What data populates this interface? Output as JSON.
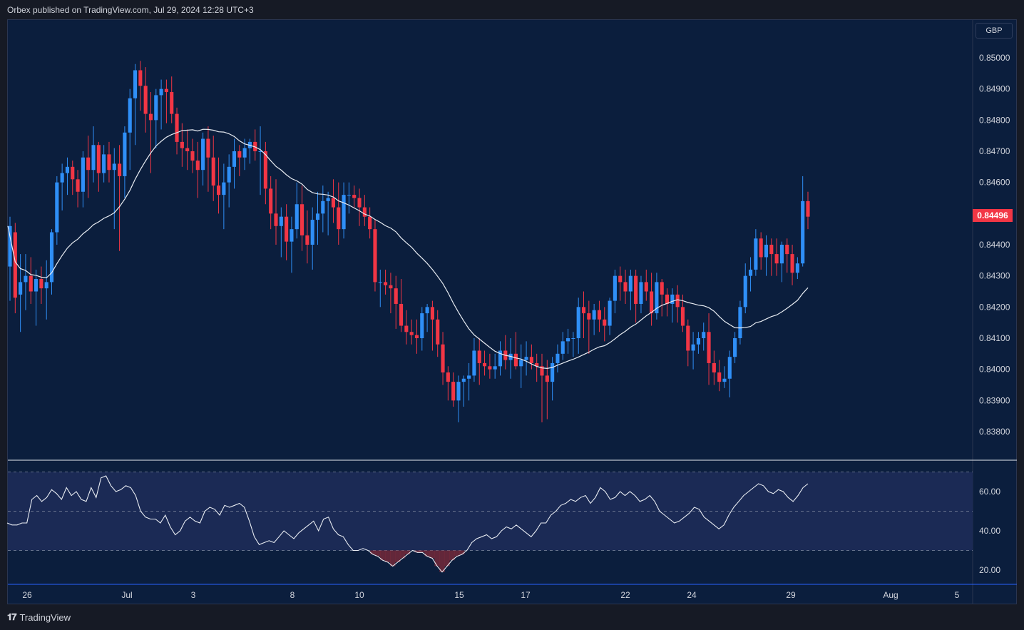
{
  "header": {
    "attribution": "Orbex published on TradingView.com, Jul 29, 2024 12:28 UTC+3"
  },
  "footer": {
    "brand": "TradingView"
  },
  "price_axis": {
    "currency": "GBP",
    "last_price": "0.84496",
    "ticks": [
      "0.85000",
      "0.84900",
      "0.84800",
      "0.84700",
      "0.84600",
      "0.84400",
      "0.84300",
      "0.84200",
      "0.84100",
      "0.84000",
      "0.83900",
      "0.83800"
    ]
  },
  "rsi_axis": {
    "ticks": [
      "60.00",
      "40.00",
      "20.00"
    ]
  },
  "time_axis": {
    "labels": [
      "26",
      "Jul",
      "3",
      "8",
      "10",
      "15",
      "17",
      "22",
      "24",
      "29",
      "Aug",
      "5"
    ]
  },
  "colors": {
    "background": "#0b1e3d",
    "up_candle": "#2f8ff7",
    "down_candle": "#f23645",
    "moving_average": "#e8ecf2",
    "rsi_line": "#e8ecf2",
    "rsi_band": "#1b2a55"
  },
  "chart_data": [
    {
      "type": "candlestick",
      "symbol_currency": "GBP",
      "ylim": [
        0.8375,
        0.851
      ],
      "x_start": "Jun 25",
      "x_end": "Aug 5",
      "candles_ohlc": [
        [
          0.8433,
          0.8449,
          0.8422,
          0.8446
        ],
        [
          0.8444,
          0.8447,
          0.8418,
          0.8423
        ],
        [
          0.8424,
          0.8437,
          0.8412,
          0.8428
        ],
        [
          0.8428,
          0.8437,
          0.8419,
          0.843
        ],
        [
          0.843,
          0.8436,
          0.8421,
          0.8425
        ],
        [
          0.8425,
          0.8432,
          0.8414,
          0.8429
        ],
        [
          0.8429,
          0.8433,
          0.8421,
          0.8426
        ],
        [
          0.8426,
          0.8435,
          0.8416,
          0.8428
        ],
        [
          0.8428,
          0.8445,
          0.8424,
          0.8444
        ],
        [
          0.8444,
          0.8462,
          0.844,
          0.846
        ],
        [
          0.846,
          0.8466,
          0.8451,
          0.8463
        ],
        [
          0.8463,
          0.8468,
          0.8456,
          0.8465
        ],
        [
          0.8465,
          0.8467,
          0.8456,
          0.8461
        ],
        [
          0.8461,
          0.8464,
          0.8452,
          0.8457
        ],
        [
          0.8457,
          0.847,
          0.8452,
          0.8468
        ],
        [
          0.8468,
          0.8475,
          0.8455,
          0.8464
        ],
        [
          0.8464,
          0.8478,
          0.846,
          0.8472
        ],
        [
          0.8472,
          0.8473,
          0.8457,
          0.8463
        ],
        [
          0.8463,
          0.8472,
          0.846,
          0.8469
        ],
        [
          0.8469,
          0.8473,
          0.846,
          0.8464
        ],
        [
          0.8464,
          0.8471,
          0.8445,
          0.8466
        ],
        [
          0.8466,
          0.8472,
          0.8438,
          0.8462
        ],
        [
          0.8462,
          0.8478,
          0.8455,
          0.8476
        ],
        [
          0.8476,
          0.849,
          0.8464,
          0.8487
        ],
        [
          0.8487,
          0.8498,
          0.8472,
          0.8496
        ],
        [
          0.8496,
          0.8499,
          0.8483,
          0.8491
        ],
        [
          0.8491,
          0.8497,
          0.8476,
          0.8482
        ],
        [
          0.8482,
          0.8489,
          0.8463,
          0.848
        ],
        [
          0.848,
          0.849,
          0.8471,
          0.8488
        ],
        [
          0.8488,
          0.8493,
          0.8477,
          0.849
        ],
        [
          0.849,
          0.8493,
          0.8479,
          0.8489
        ],
        [
          0.8489,
          0.8494,
          0.8479,
          0.8482
        ],
        [
          0.8482,
          0.8484,
          0.8469,
          0.8473
        ],
        [
          0.8473,
          0.8479,
          0.8465,
          0.8471
        ],
        [
          0.8471,
          0.8477,
          0.8464,
          0.847
        ],
        [
          0.847,
          0.8474,
          0.8463,
          0.8467
        ],
        [
          0.8467,
          0.8473,
          0.8455,
          0.8464
        ],
        [
          0.8464,
          0.8476,
          0.8459,
          0.8474
        ],
        [
          0.8474,
          0.8478,
          0.8457,
          0.8468
        ],
        [
          0.8468,
          0.8475,
          0.8454,
          0.8459
        ],
        [
          0.8459,
          0.8468,
          0.845,
          0.8456
        ],
        [
          0.8456,
          0.8466,
          0.8445,
          0.846
        ],
        [
          0.846,
          0.8469,
          0.8452,
          0.8465
        ],
        [
          0.8465,
          0.8474,
          0.8458,
          0.847
        ],
        [
          0.847,
          0.8472,
          0.8462,
          0.8468
        ],
        [
          0.8468,
          0.8474,
          0.8464,
          0.8471
        ],
        [
          0.8471,
          0.8474,
          0.8466,
          0.8473
        ],
        [
          0.8473,
          0.8477,
          0.8467,
          0.847
        ],
        [
          0.847,
          0.8478,
          0.8456,
          0.847
        ],
        [
          0.847,
          0.8473,
          0.8453,
          0.8458
        ],
        [
          0.8458,
          0.8462,
          0.8445,
          0.845
        ],
        [
          0.845,
          0.8461,
          0.844,
          0.8446
        ],
        [
          0.8446,
          0.8452,
          0.8436,
          0.8449
        ],
        [
          0.8449,
          0.8453,
          0.8435,
          0.8441
        ],
        [
          0.8441,
          0.8449,
          0.8431,
          0.8445
        ],
        [
          0.8445,
          0.846,
          0.8442,
          0.8453
        ],
        [
          0.8453,
          0.8459,
          0.8438,
          0.8443
        ],
        [
          0.8443,
          0.8451,
          0.8434,
          0.844
        ],
        [
          0.844,
          0.8452,
          0.8432,
          0.8448
        ],
        [
          0.8448,
          0.8457,
          0.844,
          0.845
        ],
        [
          0.845,
          0.8459,
          0.8444,
          0.8454
        ],
        [
          0.8454,
          0.8457,
          0.8443,
          0.8455
        ],
        [
          0.8455,
          0.8461,
          0.8447,
          0.8452
        ],
        [
          0.8452,
          0.846,
          0.844,
          0.8445
        ],
        [
          0.8445,
          0.846,
          0.8442,
          0.8456
        ],
        [
          0.8456,
          0.846,
          0.845,
          0.8456
        ],
        [
          0.8456,
          0.8459,
          0.8452,
          0.8455
        ],
        [
          0.8455,
          0.8458,
          0.8446,
          0.8452
        ],
        [
          0.8452,
          0.8456,
          0.8446,
          0.8449
        ],
        [
          0.8449,
          0.8452,
          0.8442,
          0.8445
        ],
        [
          0.8445,
          0.8448,
          0.8425,
          0.8428
        ],
        [
          0.8428,
          0.8432,
          0.842,
          0.8428
        ],
        [
          0.8428,
          0.8432,
          0.8424,
          0.8427
        ],
        [
          0.8427,
          0.8431,
          0.8418,
          0.8426
        ],
        [
          0.8426,
          0.843,
          0.8413,
          0.8421
        ],
        [
          0.8421,
          0.8429,
          0.8412,
          0.8414
        ],
        [
          0.8414,
          0.8419,
          0.8408,
          0.8412
        ],
        [
          0.8412,
          0.8416,
          0.8408,
          0.8411
        ],
        [
          0.8411,
          0.8416,
          0.8405,
          0.841
        ],
        [
          0.841,
          0.842,
          0.8406,
          0.8418
        ],
        [
          0.8418,
          0.8421,
          0.8412,
          0.842
        ],
        [
          0.842,
          0.8422,
          0.8406,
          0.8416
        ],
        [
          0.8416,
          0.8419,
          0.8404,
          0.8408
        ],
        [
          0.8408,
          0.8412,
          0.8395,
          0.8399
        ],
        [
          0.8399,
          0.8401,
          0.839,
          0.8396
        ],
        [
          0.8396,
          0.8399,
          0.8388,
          0.839
        ],
        [
          0.839,
          0.8398,
          0.8383,
          0.8396
        ],
        [
          0.8396,
          0.8398,
          0.8388,
          0.8397
        ],
        [
          0.8397,
          0.8402,
          0.839,
          0.8398
        ],
        [
          0.8398,
          0.841,
          0.8396,
          0.8406
        ],
        [
          0.8406,
          0.841,
          0.8395,
          0.8402
        ],
        [
          0.8402,
          0.8406,
          0.8398,
          0.8401
        ],
        [
          0.8401,
          0.8405,
          0.8397,
          0.84
        ],
        [
          0.84,
          0.8405,
          0.8397,
          0.8401
        ],
        [
          0.8401,
          0.8409,
          0.8398,
          0.8406
        ],
        [
          0.8406,
          0.8411,
          0.84,
          0.8403
        ],
        [
          0.8403,
          0.841,
          0.8397,
          0.8405
        ],
        [
          0.8405,
          0.8412,
          0.84,
          0.8401
        ],
        [
          0.8401,
          0.8408,
          0.8394,
          0.8403
        ],
        [
          0.8403,
          0.8409,
          0.8398,
          0.8404
        ],
        [
          0.8404,
          0.8408,
          0.84,
          0.8402
        ],
        [
          0.8402,
          0.8405,
          0.8396,
          0.8401
        ],
        [
          0.8401,
          0.8405,
          0.8383,
          0.8398
        ],
        [
          0.8398,
          0.8403,
          0.8384,
          0.8396
        ],
        [
          0.8396,
          0.8404,
          0.839,
          0.8402
        ],
        [
          0.8402,
          0.8408,
          0.8399,
          0.8405
        ],
        [
          0.8405,
          0.8412,
          0.8403,
          0.8409
        ],
        [
          0.8409,
          0.8413,
          0.8405,
          0.841
        ],
        [
          0.841,
          0.8412,
          0.8404,
          0.841
        ],
        [
          0.841,
          0.8423,
          0.8405,
          0.842
        ],
        [
          0.842,
          0.8425,
          0.841,
          0.8418
        ],
        [
          0.8418,
          0.8422,
          0.8405,
          0.8416
        ],
        [
          0.8416,
          0.8421,
          0.8411,
          0.8419
        ],
        [
          0.8419,
          0.8422,
          0.8412,
          0.8416
        ],
        [
          0.8416,
          0.842,
          0.8409,
          0.8414
        ],
        [
          0.8414,
          0.8423,
          0.8411,
          0.8422
        ],
        [
          0.8422,
          0.8432,
          0.8418,
          0.843
        ],
        [
          0.843,
          0.8433,
          0.8422,
          0.8428
        ],
        [
          0.8428,
          0.8432,
          0.8421,
          0.8425
        ],
        [
          0.8425,
          0.8432,
          0.8419,
          0.843
        ],
        [
          0.843,
          0.8432,
          0.8415,
          0.8421
        ],
        [
          0.8421,
          0.843,
          0.8418,
          0.8428
        ],
        [
          0.8428,
          0.8432,
          0.8422,
          0.8425
        ],
        [
          0.8425,
          0.8431,
          0.8414,
          0.8418
        ],
        [
          0.8418,
          0.8431,
          0.8416,
          0.8428
        ],
        [
          0.8428,
          0.8429,
          0.8417,
          0.8424
        ],
        [
          0.8424,
          0.8426,
          0.8417,
          0.8421
        ],
        [
          0.8421,
          0.8426,
          0.8415,
          0.8424
        ],
        [
          0.8424,
          0.8427,
          0.8415,
          0.842
        ],
        [
          0.842,
          0.8424,
          0.8412,
          0.8414
        ],
        [
          0.8414,
          0.8416,
          0.8401,
          0.8406
        ],
        [
          0.8406,
          0.8412,
          0.84,
          0.8408
        ],
        [
          0.8408,
          0.8412,
          0.8405,
          0.841
        ],
        [
          0.841,
          0.8415,
          0.8406,
          0.8412
        ],
        [
          0.8412,
          0.8418,
          0.8395,
          0.8402
        ],
        [
          0.8402,
          0.8406,
          0.8395,
          0.8399
        ],
        [
          0.8399,
          0.8403,
          0.8393,
          0.8396
        ],
        [
          0.8396,
          0.8401,
          0.8394,
          0.8397
        ],
        [
          0.8397,
          0.8406,
          0.8391,
          0.8404
        ],
        [
          0.8404,
          0.8412,
          0.8402,
          0.841
        ],
        [
          0.841,
          0.8422,
          0.8408,
          0.842
        ],
        [
          0.842,
          0.8434,
          0.8418,
          0.843
        ],
        [
          0.843,
          0.8436,
          0.8425,
          0.8432
        ],
        [
          0.8432,
          0.8445,
          0.843,
          0.8442
        ],
        [
          0.8442,
          0.8444,
          0.8432,
          0.8436
        ],
        [
          0.8436,
          0.8443,
          0.843,
          0.844
        ],
        [
          0.844,
          0.8442,
          0.843,
          0.8437
        ],
        [
          0.8437,
          0.8442,
          0.843,
          0.8434
        ],
        [
          0.8434,
          0.8441,
          0.8428,
          0.844
        ],
        [
          0.844,
          0.8442,
          0.8431,
          0.8437
        ],
        [
          0.8437,
          0.844,
          0.8427,
          0.8431
        ],
        [
          0.8431,
          0.8436,
          0.8429,
          0.8434
        ],
        [
          0.8434,
          0.8462,
          0.8433,
          0.8454
        ],
        [
          0.8454,
          0.8457,
          0.8445,
          0.8449
        ]
      ],
      "moving_average_period_label": "",
      "last_price": 0.84496
    },
    {
      "type": "line",
      "name": "",
      "ylim": [
        15,
        75
      ],
      "bands": [
        30,
        50,
        70
      ],
      "values": [
        44,
        43,
        43,
        44,
        44,
        56,
        58,
        55,
        57,
        61,
        59,
        56,
        62,
        58,
        60,
        56,
        55,
        62,
        57,
        67,
        68,
        63,
        60,
        61,
        63,
        62,
        58,
        50,
        47,
        46,
        46,
        44,
        48,
        42,
        38,
        40,
        45,
        47,
        45,
        44,
        50,
        52,
        51,
        48,
        53,
        52,
        53,
        54,
        52,
        45,
        37,
        33,
        34,
        35,
        34,
        37,
        40,
        38,
        36,
        39,
        41,
        43,
        45,
        40,
        46,
        47,
        41,
        38,
        37,
        33,
        30,
        30,
        31,
        30,
        28,
        27,
        25,
        24,
        22,
        24,
        26,
        28,
        30,
        29,
        29,
        27,
        26,
        22,
        19,
        22,
        25,
        27,
        28,
        30,
        34,
        36,
        37,
        38,
        36,
        37,
        40,
        42,
        41,
        43,
        41,
        39,
        37,
        40,
        44,
        44,
        48,
        50,
        53,
        54,
        56,
        55,
        57,
        58,
        54,
        57,
        62,
        60,
        56,
        57,
        60,
        58,
        60,
        58,
        55,
        56,
        58,
        55,
        50,
        48,
        46,
        44,
        45,
        47,
        49,
        52,
        51,
        47,
        45,
        43,
        41,
        43,
        48,
        52,
        55,
        58,
        60,
        62,
        64,
        63,
        60,
        59,
        61,
        60,
        57,
        55,
        58,
        62,
        64
      ]
    }
  ]
}
